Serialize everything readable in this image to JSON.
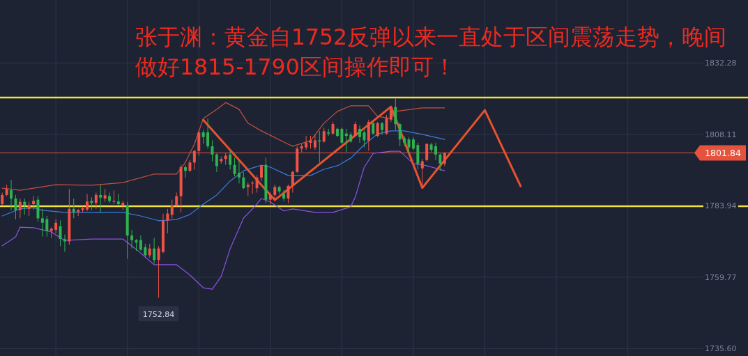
{
  "chart_data": {
    "type": "candlestick",
    "title": "张于渊：黄金自1752反弹以来一直处于区间震荡走势，晚间做好1815-1790区间操作即可！",
    "categories": [
      null,
      null,
      null,
      null,
      null,
      null,
      null,
      null,
      null,
      null,
      null,
      null,
      null,
      null,
      null,
      null,
      null,
      null,
      null,
      null,
      null,
      null,
      null,
      null,
      null,
      null,
      null,
      null,
      null,
      null,
      null,
      null,
      null,
      null,
      null,
      null,
      null,
      null,
      null,
      null,
      null,
      null,
      null,
      null,
      null,
      null,
      null,
      null,
      null,
      null,
      null,
      null,
      null,
      null,
      null,
      null,
      null,
      null,
      null,
      null,
      null,
      null,
      null,
      null,
      null,
      null,
      null,
      null,
      null,
      null,
      null,
      null,
      null,
      null,
      null,
      null,
      null,
      null,
      null,
      null,
      null,
      null,
      null,
      null,
      null,
      null,
      null,
      null,
      null,
      null,
      null,
      null,
      null,
      null,
      null,
      null,
      null,
      null,
      null,
      null,
      null,
      null,
      null,
      null,
      null,
      null,
      null,
      null,
      null,
      null,
      null,
      null,
      null,
      null,
      null,
      null,
      null,
      null,
      null,
      null,
      null,
      null,
      null,
      null,
      null,
      null,
      null,
      null,
      null,
      null,
      null,
      null,
      null,
      null,
      null,
      null,
      null,
      null,
      null,
      null,
      null,
      null,
      null,
      null,
      null,
      null,
      null,
      null,
      null,
      null,
      null,
      null,
      null,
      null,
      null,
      null
    ],
    "ohlc": [
      [
        1784.5,
        1788.4,
        1784.1,
        1787.6
      ],
      [
        1787.6,
        1791.1,
        1787.2,
        1789.6
      ],
      [
        1789.2,
        1792.7,
        1782.5,
        1786.4
      ],
      [
        1786.4,
        1787.6,
        1779.4,
        1782.5
      ],
      [
        1782.5,
        1786.4,
        1779.7,
        1785.3
      ],
      [
        1785.3,
        1786.4,
        1780.9,
        1784.1
      ],
      [
        1782.9,
        1785.3,
        1780.5,
        1784.1
      ],
      [
        1784.5,
        1787.2,
        1782.5,
        1785.6
      ],
      [
        1786.0,
        1787.2,
        1778.6,
        1779.7
      ],
      [
        1779.7,
        1782.9,
        1773.5,
        1778.2
      ],
      [
        1779.4,
        1780.5,
        1773.5,
        1775.4
      ],
      [
        1775.4,
        1776.6,
        1773.1,
        1776.2
      ],
      [
        1775.8,
        1779.4,
        1774.6,
        1778.2
      ],
      [
        1777.0,
        1779.0,
        1770.3,
        1772.7
      ],
      [
        1772.7,
        1774.2,
        1768.4,
        1771.9
      ],
      [
        1771.9,
        1789.6,
        1770.7,
        1782.9
      ],
      [
        1782.9,
        1786.4,
        1779.7,
        1781.7
      ],
      [
        1781.9,
        1782.9,
        1780.5,
        1782.5
      ],
      [
        1782.5,
        1783.7,
        1781.7,
        1783.1
      ],
      [
        1782.7,
        1788.0,
        1782.1,
        1785.4
      ],
      [
        1785.6,
        1786.8,
        1782.5,
        1784.9
      ],
      [
        1784.9,
        1788.4,
        1782.9,
        1787.6
      ],
      [
        1787.6,
        1791.1,
        1781.7,
        1786.7
      ],
      [
        1786.4,
        1789.6,
        1785.3,
        1787.5
      ],
      [
        1787.2,
        1788.4,
        1784.9,
        1785.6
      ],
      [
        1785.3,
        1789.2,
        1784.5,
        1785.6
      ],
      [
        1785.4,
        1788.0,
        1784.1,
        1784.5
      ],
      [
        1784.1,
        1785.6,
        1782.5,
        1784.9
      ],
      [
        1784.1,
        1785.3,
        1766.0,
        1773.9
      ],
      [
        1773.9,
        1775.8,
        1769.5,
        1772.3
      ],
      [
        1772.3,
        1772.7,
        1768.7,
        1771.5
      ],
      [
        1772.3,
        1773.9,
        1768.7,
        1769.1
      ],
      [
        1769.9,
        1771.1,
        1766.4,
        1767.2
      ],
      [
        1767.2,
        1771.1,
        1766.4,
        1769.5
      ],
      [
        1769.5,
        1773.1,
        1764.4,
        1765.6
      ],
      [
        1765.6,
        1770.3,
        1752.84,
        1769.5
      ],
      [
        1768.3,
        1781.3,
        1767.9,
        1778.9
      ],
      [
        1778.9,
        1782.9,
        1774.6,
        1781.3
      ],
      [
        1780.9,
        1786.0,
        1779.7,
        1784.1
      ],
      [
        1784.1,
        1788.4,
        1783.7,
        1787.2
      ],
      [
        1787.2,
        1797.8,
        1781.7,
        1797.0
      ],
      [
        1797.0,
        1797.8,
        1793.5,
        1795.8
      ],
      [
        1795.8,
        1799.4,
        1795.4,
        1798.6
      ],
      [
        1798.6,
        1802.9,
        1796.2,
        1802.5
      ],
      [
        1802.5,
        1809.6,
        1800.9,
        1808.8
      ],
      [
        1808.8,
        1809.6,
        1804.9,
        1807.2
      ],
      [
        1808.8,
        1813.5,
        1803.3,
        1804.1
      ],
      [
        1804.1,
        1806.1,
        1799.0,
        1801.3
      ],
      [
        1801.3,
        1801.7,
        1795.4,
        1797.4
      ],
      [
        1799.0,
        1800.6,
        1798.2,
        1799.8
      ],
      [
        1799.8,
        1801.7,
        1797.8,
        1800.9
      ],
      [
        1801.3,
        1802.5,
        1796.2,
        1797.8
      ],
      [
        1797.8,
        1800.2,
        1793.9,
        1794.7
      ],
      [
        1795.1,
        1799.4,
        1791.5,
        1793.5
      ],
      [
        1793.5,
        1795.4,
        1789.6,
        1789.9
      ],
      [
        1790.3,
        1791.9,
        1787.2,
        1791.1
      ],
      [
        1791.5,
        1792.3,
        1788.0,
        1791.7
      ],
      [
        1789.9,
        1794.3,
        1788.4,
        1793.5
      ],
      [
        1793.5,
        1797.8,
        1792.3,
        1797.4
      ],
      [
        1797.8,
        1800.2,
        1784.8,
        1786.0
      ],
      [
        1786.0,
        1788.4,
        1784.4,
        1787.6
      ],
      [
        1787.6,
        1791.1,
        1786.0,
        1790.3
      ],
      [
        1790.3,
        1790.7,
        1788.0,
        1788.8
      ],
      [
        1788.0,
        1789.2,
        1785.6,
        1786.4
      ],
      [
        1786.4,
        1791.1,
        1784.8,
        1790.7
      ],
      [
        1790.7,
        1795.8,
        1788.4,
        1795.4
      ],
      [
        1795.4,
        1804.1,
        1795.1,
        1803.3
      ],
      [
        1803.3,
        1804.9,
        1802.1,
        1804.1
      ],
      [
        1803.7,
        1807.6,
        1802.9,
        1805.3
      ],
      [
        1805.3,
        1807.6,
        1803.3,
        1806.1
      ],
      [
        1803.7,
        1808.0,
        1802.9,
        1806.1
      ],
      [
        1806.1,
        1809.2,
        1798.6,
        1805.7
      ],
      [
        1805.7,
        1810.4,
        1805.3,
        1809.2
      ],
      [
        1808.8,
        1810.0,
        1807.6,
        1808.4
      ],
      [
        1808.4,
        1812.4,
        1808.0,
        1811.6
      ],
      [
        1810.0,
        1810.4,
        1807.2,
        1807.6
      ],
      [
        1810.0,
        1810.4,
        1804.9,
        1805.3
      ],
      [
        1808.4,
        1810.0,
        1802.1,
        1807.6
      ],
      [
        1808.0,
        1808.8,
        1805.3,
        1805.7
      ],
      [
        1807.6,
        1812.4,
        1807.2,
        1811.6
      ],
      [
        1810.0,
        1811.2,
        1805.3,
        1807.2
      ],
      [
        1808.8,
        1809.6,
        1803.7,
        1806.1
      ],
      [
        1806.0,
        1813.1,
        1802.5,
        1812.3
      ],
      [
        1811.9,
        1812.3,
        1808.0,
        1808.4
      ],
      [
        1807.6,
        1812.3,
        1807.2,
        1811.9
      ],
      [
        1811.9,
        1812.3,
        1808.0,
        1809.6
      ],
      [
        1808.4,
        1814.7,
        1808.0,
        1813.5
      ],
      [
        1813.1,
        1817.4,
        1812.3,
        1816.7
      ],
      [
        1817.4,
        1820.2,
        1809.6,
        1811.6
      ],
      [
        1811.6,
        1812.0,
        1804.1,
        1806.4
      ],
      [
        1806.8,
        1807.6,
        1804.1,
        1805.3
      ],
      [
        1806.4,
        1807.2,
        1801.7,
        1803.7
      ],
      [
        1806.4,
        1807.2,
        1802.9,
        1803.3
      ],
      [
        1804.5,
        1805.3,
        1796.2,
        1798.2
      ],
      [
        1796.6,
        1799.8,
        1789.9,
        1799.0
      ],
      [
        1799.4,
        1805.0,
        1799.0,
        1804.9
      ],
      [
        1804.7,
        1805.3,
        1802.1,
        1802.9
      ],
      [
        1804.1,
        1805.3,
        1799.4,
        1801.3
      ],
      [
        1801.3,
        1801.7,
        1795.8,
        1798.2
      ],
      [
        1798.2,
        1802.1,
        1797.4,
        1801.84
      ],
      null,
      null,
      null,
      null,
      null,
      null,
      null,
      null,
      null,
      null,
      null,
      null,
      null,
      null,
      null,
      null,
      null,
      null,
      null,
      null,
      null,
      null,
      null,
      null,
      null,
      null,
      null,
      null,
      null,
      null,
      null,
      null,
      null,
      null,
      null,
      null,
      null,
      null,
      null,
      null,
      null,
      null,
      null,
      null,
      null,
      null,
      null,
      null,
      null,
      null,
      null,
      null,
      null,
      null,
      null,
      null
    ],
    "series": [
      {
        "type": "line",
        "color": "#c4503f",
        "values": [
          1789.9,
          null,
          null,
          null,
          1789.2,
          null,
          null,
          null,
          null,
          null,
          null,
          null,
          1791.1,
          null,
          null,
          null,
          null,
          null,
          null,
          null,
          1790.9,
          null,
          null,
          null,
          null,
          null,
          null,
          1791.8,
          null,
          null,
          null,
          null,
          null,
          null,
          1794.7,
          null,
          null,
          null,
          null,
          1794.7,
          null,
          1798.7,
          null,
          1804.8,
          null,
          1813.5,
          null,
          null,
          1816.6,
          null,
          1818.9,
          null,
          null,
          1816.6,
          null,
          1811.9,
          null,
          null,
          1809.3,
          null,
          null,
          null,
          null,
          null,
          1804.8,
          1804.1,
          null,
          null,
          null,
          1806.0,
          null,
          null,
          1811.9,
          null,
          null,
          1815.9,
          null,
          null,
          1817.8,
          null,
          null,
          null,
          1817.8,
          null,
          1814.2,
          null,
          null,
          1813.5,
          1815.9,
          null,
          null,
          null,
          null,
          null,
          1817.1,
          null,
          null,
          null,
          null,
          1817.1,
          null,
          null,
          null,
          null,
          null,
          null,
          null,
          null,
          null,
          null,
          null,
          null,
          null,
          null,
          null,
          null,
          null,
          null,
          null,
          null,
          null,
          null,
          null,
          null,
          null,
          null,
          null,
          null,
          null,
          null,
          null,
          null,
          null,
          null,
          null,
          null,
          null,
          null,
          null,
          null,
          null,
          null,
          null,
          null,
          null,
          null,
          null,
          null,
          null,
          null,
          null,
          null,
          null,
          null,
          null,
          null
        ]
      },
      {
        "type": "line",
        "color": "#3b7ddd",
        "values": [
          1780.5,
          null,
          null,
          null,
          1782.9,
          null,
          null,
          1783.3,
          null,
          1782.4,
          null,
          null,
          null,
          null,
          1781.7,
          null,
          null,
          null,
          null,
          null,
          1781.7,
          null,
          null,
          null,
          null,
          null,
          null,
          1781.7,
          null,
          null,
          null,
          1780.5,
          null,
          null,
          null,
          1778.9,
          null,
          null,
          null,
          1779.3,
          null,
          null,
          1781.0,
          null,
          null,
          1784.5,
          null,
          null,
          1787.6,
          null,
          null,
          1792.3,
          null,
          null,
          1795.8,
          null,
          null,
          null,
          1797.7,
          null,
          1797.0,
          null,
          null,
          null,
          1794.2,
          null,
          null,
          null,
          null,
          1794.2,
          null,
          null,
          1796.3,
          null,
          null,
          1797.5,
          null,
          null,
          1800.1,
          null,
          null,
          1804.6,
          null,
          null,
          1808.3,
          null,
          null,
          1809.3,
          null,
          null,
          1809.3,
          null,
          null,
          null,
          1808.1,
          null,
          null,
          null,
          null,
          1806.4,
          null,
          null,
          null,
          null,
          null,
          null,
          null,
          null,
          null,
          null,
          null,
          null,
          null,
          null,
          null,
          null,
          null,
          null,
          null,
          null,
          null,
          null,
          null,
          null,
          null,
          null,
          null,
          null,
          null,
          null,
          null,
          null,
          null,
          null,
          null,
          null,
          null,
          null,
          null,
          null,
          null,
          null,
          null,
          null,
          null,
          null,
          null,
          null,
          null,
          null,
          null,
          null,
          null,
          null,
          null,
          null
        ]
      },
      {
        "type": "line",
        "color": "#8c52e6",
        "values": [
          1770.4,
          null,
          null,
          1773.4,
          1776.7,
          null,
          null,
          1776.5,
          null,
          1775.8,
          null,
          1775.1,
          null,
          null,
          1772.2,
          null,
          null,
          null,
          null,
          null,
          1772.7,
          null,
          null,
          null,
          null,
          null,
          null,
          1772.7,
          null,
          null,
          1769.2,
          null,
          null,
          null,
          1764.0,
          null,
          null,
          null,
          null,
          1764.0,
          null,
          null,
          1760.5,
          null,
          null,
          1756.2,
          null,
          1755.7,
          null,
          1760.0,
          null,
          1769.4,
          null,
          null,
          1779.8,
          null,
          1782.9,
          null,
          1786.4,
          null,
          1785.2,
          null,
          null,
          1782.2,
          null,
          1782.9,
          null,
          null,
          null,
          null,
          1781.7,
          null,
          null,
          null,
          1781.7,
          null,
          null,
          null,
          1783.6,
          1786.9,
          null,
          1797.0,
          null,
          1801.7,
          null,
          null,
          null,
          1802.4,
          null,
          1802.4,
          null,
          null,
          1798.2,
          null,
          null,
          1797.5,
          null,
          null,
          null,
          1795.8,
          null,
          null,
          null,
          null,
          null,
          null,
          null,
          null,
          null,
          null,
          null,
          null,
          null,
          null,
          null,
          null,
          null,
          null,
          null,
          null,
          null,
          null,
          null,
          null,
          null,
          null,
          null,
          null,
          null,
          null,
          null,
          null,
          null,
          null,
          null,
          null,
          null,
          null,
          null,
          null,
          null,
          null,
          null,
          null,
          null,
          null,
          null,
          null,
          null,
          null,
          null,
          null,
          null,
          null,
          null,
          null
        ]
      },
      {
        "type": "line",
        "color": "#e8522e",
        "values": [
          null,
          null,
          null,
          null,
          null,
          null,
          null,
          null,
          null,
          null,
          null,
          null,
          null,
          null,
          null,
          null,
          null,
          null,
          null,
          null,
          null,
          null,
          null,
          null,
          null,
          null,
          null,
          null,
          null,
          null,
          null,
          null,
          null,
          null,
          null,
          null,
          null,
          null,
          null,
          null,
          null,
          null,
          null,
          null,
          null,
          1813.0,
          null,
          null,
          null,
          null,
          null,
          null,
          null,
          null,
          null,
          null,
          null,
          null,
          null,
          null,
          null,
          1785.9,
          null,
          null,
          null,
          null,
          null,
          null,
          null,
          null,
          null,
          null,
          null,
          null,
          null,
          null,
          null,
          null,
          null,
          null,
          null,
          null,
          null,
          null,
          null,
          null,
          null,
          1817.5,
          null,
          null,
          null,
          null,
          null,
          null,
          1790.0,
          null,
          null,
          null,
          null,
          null,
          null,
          null,
          null,
          null,
          null,
          null,
          null,
          null,
          1816.3,
          null,
          null,
          null,
          null,
          null,
          null,
          null,
          1790.6,
          null,
          null,
          null,
          null,
          null,
          null,
          null,
          null,
          null,
          null,
          null,
          null,
          null,
          null,
          null,
          null,
          null,
          null,
          null,
          null,
          null,
          null,
          null,
          null,
          null,
          null,
          null,
          null,
          null,
          null,
          null,
          null,
          null,
          null,
          null,
          null,
          null,
          null,
          null
        ]
      }
    ],
    "ylim": [
      1733.1,
      1853.6
    ],
    "yticks": [
      1832.28,
      1808.11,
      1783.94,
      1759.77,
      {
        "value": 1735.6,
        "label": "1735.60"
      }
    ],
    "ref_lines": [
      {
        "axis": "y",
        "value": 1820.6,
        "color": "#f2e23c"
      },
      {
        "axis": "y",
        "value": 1783.8,
        "color": "#f2e23c"
      },
      {
        "axis": "y",
        "value": 1801.84,
        "label": "1801.84",
        "color": "#e5533d"
      }
    ],
    "annotations": [
      "1752.84"
    ],
    "grid": true
  }
}
